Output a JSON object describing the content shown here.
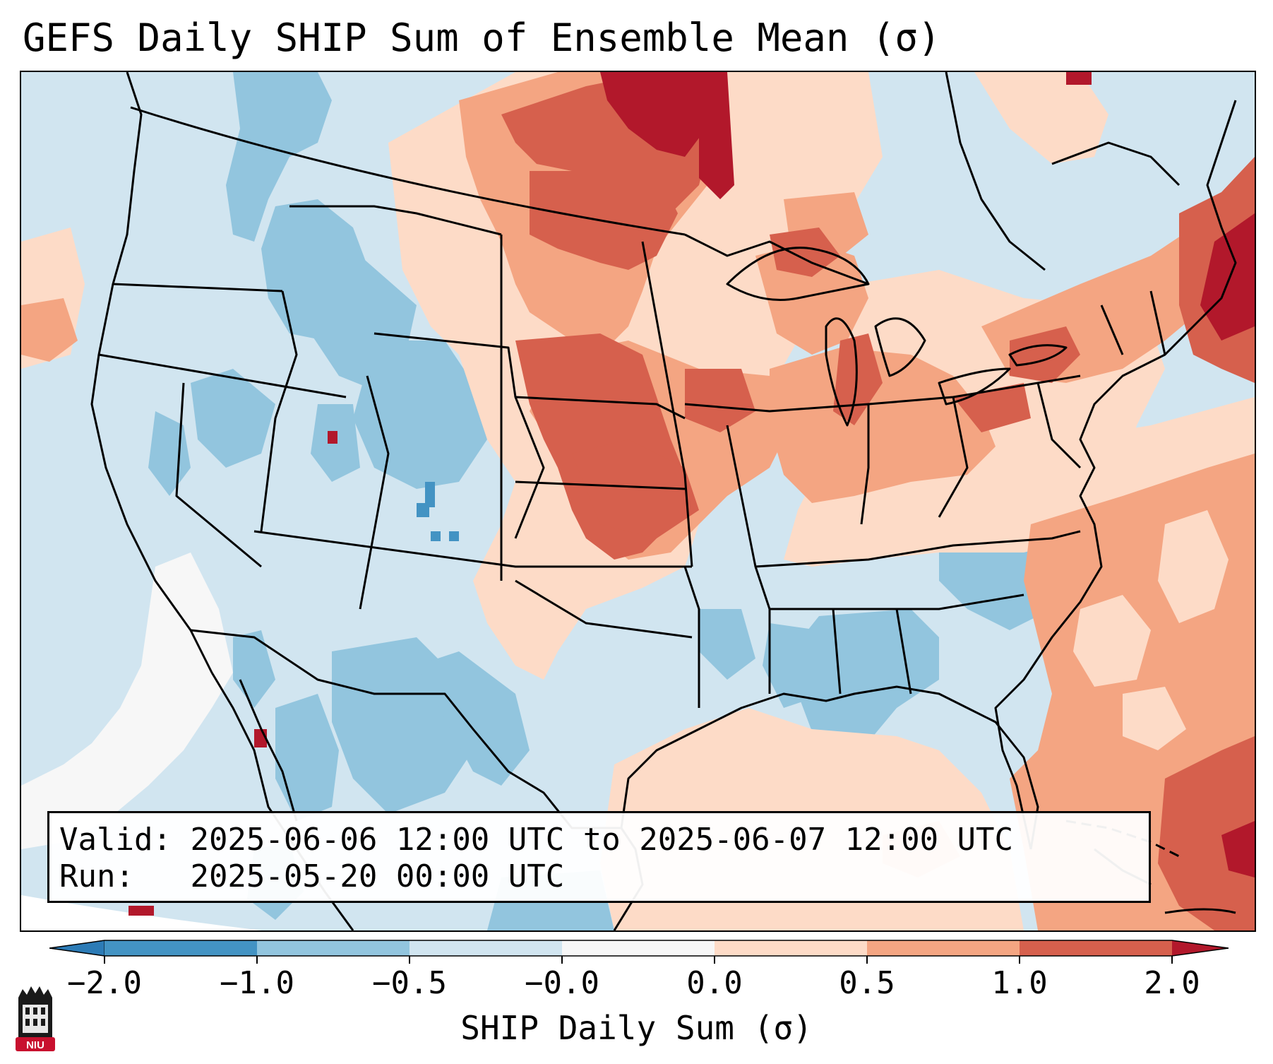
{
  "title": "GEFS Daily SHIP Sum of Ensemble Mean (σ)",
  "info": {
    "valid_label": "Valid:",
    "valid_text": "2025-06-06 12:00 UTC to 2025-06-07 12:00 UTC",
    "run_label": "Run:",
    "run_text": "2025-05-20 00:00 UTC"
  },
  "colorbar": {
    "label": "SHIP Daily Sum (σ)",
    "ticks": [
      "−2.0",
      "−1.0",
      "−0.5",
      "−0.0",
      "0.0",
      "0.5",
      "1.0",
      "2.0"
    ],
    "bins": [
      {
        "range": "< -2.0",
        "color": "#2c7bb6"
      },
      {
        "range": "-2.0 to -1.0",
        "color": "#4393c3"
      },
      {
        "range": "-1.0 to -0.5",
        "color": "#92c5de"
      },
      {
        "range": "-0.5 to -0.0",
        "color": "#d1e5f0"
      },
      {
        "range": "-0.0 to 0.0",
        "color": "#f7f7f7"
      },
      {
        "range": "0.0 to 0.5",
        "color": "#fddbc7"
      },
      {
        "range": "0.5 to 1.0",
        "color": "#f4a582"
      },
      {
        "range": "1.0 to 2.0",
        "color": "#d6604d"
      },
      {
        "range": "> 2.0",
        "color": "#b2182b"
      }
    ]
  },
  "regions": [
    {
      "name": "pacific-northwest",
      "sigma": "-0.5 to -0.0"
    },
    {
      "name": "idaho-utah-colorado",
      "sigma": "-1.0 to -0.5"
    },
    {
      "name": "northern-plains",
      "sigma": "0.5 to 2.0"
    },
    {
      "name": "north-dakota-canada-border",
      "sigma": "> 2.0"
    },
    {
      "name": "great-lakes-ohio-valley",
      "sigma": "0.5 to 1.0"
    },
    {
      "name": "southeast-georgia-alabama",
      "sigma": "-1.0 to -0.5"
    },
    {
      "name": "gulf-of-mexico",
      "sigma": "0.0 to 0.5"
    },
    {
      "name": "western-atlantic",
      "sigma": "0.5 to 1.0"
    },
    {
      "name": "new-england-offshore",
      "sigma": "> 2.0"
    },
    {
      "name": "offshore-california-southwest",
      "sigma": "-0.0 to 0.0"
    }
  ],
  "logo": {
    "text": "NIU"
  }
}
